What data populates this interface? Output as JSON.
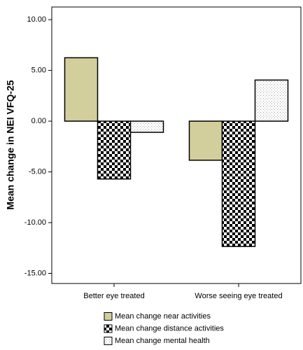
{
  "chart_data": {
    "type": "bar",
    "y_label": "Mean change in NEI VFQ-25",
    "categories": [
      "Better eye treated",
      "Worse seeing eye treated"
    ],
    "series": [
      {
        "name": "Mean change near activities",
        "color": "#d3cf9c",
        "values": [
          6.25,
          -3.85
        ]
      },
      {
        "name": "Mean change distance activities",
        "color": "checker",
        "values": [
          -5.7,
          -12.35
        ]
      },
      {
        "name": "Mean change mental health",
        "color": "dots",
        "values": [
          -1.1,
          4.05
        ]
      }
    ],
    "ylim": [
      -16,
      11.25
    ],
    "yticks": [
      {
        "value": -15,
        "label": "-15.00"
      },
      {
        "value": -10,
        "label": "-10.00"
      },
      {
        "value": -5,
        "label": "-5.00"
      },
      {
        "value": 0,
        "label": "0.00"
      },
      {
        "value": 5,
        "label": "5.00"
      },
      {
        "value": 10,
        "label": "10.00"
      }
    ],
    "grid": false
  }
}
